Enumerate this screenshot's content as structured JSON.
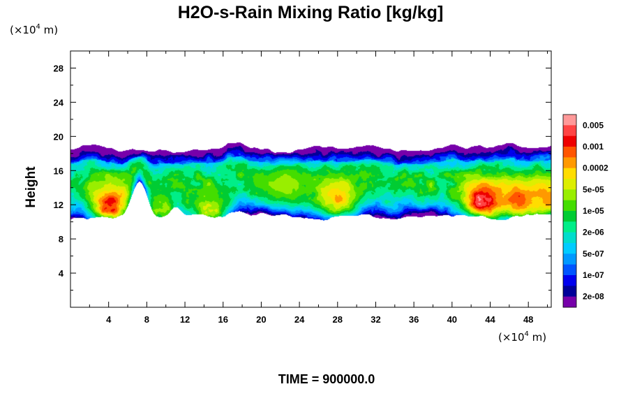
{
  "chart_data": {
    "type": "heatmap",
    "title": "H2O-s-Rain Mixing Ratio [kg/kg]",
    "ylabel": "Height",
    "x_unit_prefix": "(×10",
    "x_unit_exp": "4",
    "x_unit_suffix": " m)",
    "y_unit_prefix": "(×10",
    "y_unit_exp": "4",
    "y_unit_suffix": " m)",
    "xlim": [
      0,
      50.4
    ],
    "ylim": [
      0,
      30
    ],
    "x_ticks": [
      4,
      8,
      12,
      16,
      20,
      24,
      28,
      32,
      36,
      40,
      44,
      48
    ],
    "y_ticks": [
      4,
      8,
      12,
      16,
      20,
      24,
      28
    ],
    "footer": "TIME = 900000.0",
    "colorbar": {
      "labels": [
        "0.005",
        "0.001",
        "0.0002",
        "5e-05",
        "1e-05",
        "2e-06",
        "5e-07",
        "1e-07",
        "2e-08"
      ],
      "colors": [
        "#ff9999",
        "#ff4444",
        "#ee0000",
        "#ff5500",
        "#ff9900",
        "#ffdd00",
        "#ddee00",
        "#99ee00",
        "#44dd00",
        "#00cc33",
        "#00ee88",
        "#00ddcc",
        "#00ccff",
        "#0099ff",
        "#0055ff",
        "#0000ee",
        "#000099",
        "#7700aa"
      ]
    },
    "field": {
      "description_levels": "log10 mixing ratio bands",
      "cloud_band_base": 10.5,
      "cloud_band_top": 18.5,
      "cores": [
        {
          "x": 4.2,
          "y": 12.0,
          "level": 0.0012
        },
        {
          "x": 9.5,
          "y": 11.5,
          "level": 3e-05
        },
        {
          "x": 14.5,
          "y": 11.4,
          "level": 6e-05
        },
        {
          "x": 22.5,
          "y": 14.5,
          "level": 3e-05
        },
        {
          "x": 28.0,
          "y": 12.8,
          "level": 0.0002
        },
        {
          "x": 43.2,
          "y": 12.5,
          "level": 0.0035
        },
        {
          "x": 47.0,
          "y": 12.5,
          "level": 0.0008
        },
        {
          "x": 49.8,
          "y": 12.8,
          "level": 0.0003
        }
      ]
    }
  }
}
